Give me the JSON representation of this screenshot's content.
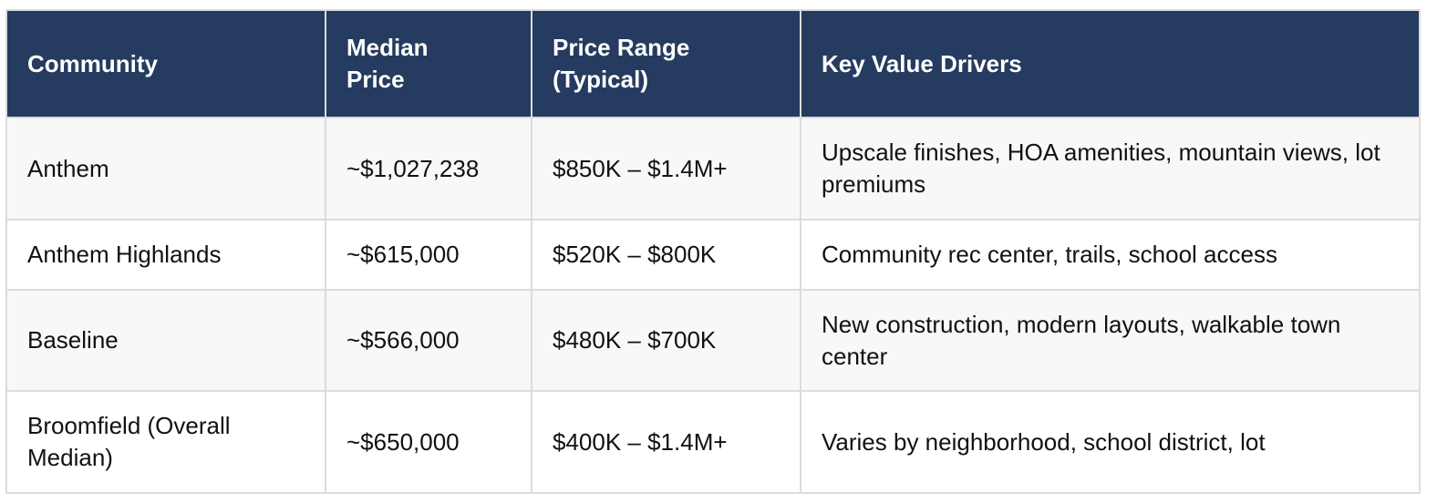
{
  "table": {
    "columns": [
      "Community",
      "Median Price",
      "Price Range (Typical)",
      "Key Value Drivers"
    ],
    "rows": [
      [
        "Anthem",
        "~$1,027,238",
        "$850K – $1.4M+",
        "Upscale finishes, HOA amenities, mountain views, lot premiums"
      ],
      [
        "Anthem Highlands",
        "~$615,000",
        "$520K – $800K",
        "Community rec center, trails, school access"
      ],
      [
        "Baseline",
        "~$566,000",
        "$480K – $700K",
        "New construction, modern layouts, walkable town center"
      ],
      [
        "Broomfield (Overall Median)",
        "~$650,000",
        "$400K – $1.4M+",
        "Varies by neighborhood, school district, lot"
      ]
    ]
  }
}
